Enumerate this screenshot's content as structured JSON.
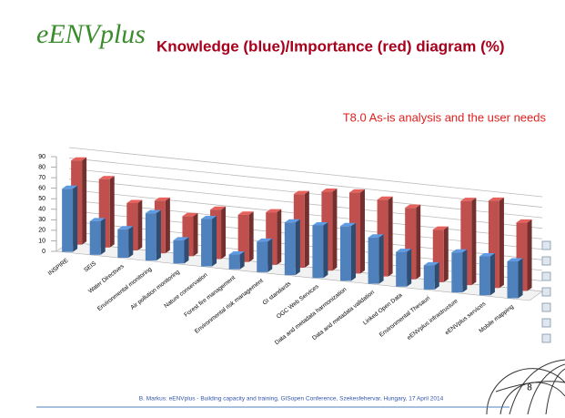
{
  "logo": "eENVplus",
  "chart_data": {
    "type": "bar",
    "title": "Knowledge (blue)/Importance (red) diagram (%)",
    "subtitle": "T8.0 As-is analysis and the user needs",
    "categories": [
      "INSPIRE",
      "SEIS",
      "Water Directives",
      "Environmental monitoring",
      "Air pollution monitoring",
      "Nature conservation",
      "Forest fire management",
      "Environmental risk management",
      "GI standards",
      "OGC Web Services",
      "Data and metadata harmonization",
      "Data and metadata validation",
      "Linked Open Data",
      "Environmental Thesauri",
      "eENVplus infrastructure",
      "eENVplus services",
      "Mobile mapping"
    ],
    "series": [
      {
        "color": "#4f81bd",
        "values": [
          60,
          32,
          27,
          45,
          22,
          45,
          14,
          29,
          50,
          50,
          52,
          44,
          33,
          23,
          38,
          37,
          35
        ]
      },
      {
        "color": "#c0504d",
        "values": [
          80,
          65,
          45,
          50,
          38,
          47,
          45,
          50,
          70,
          75,
          77,
          73,
          68,
          50,
          80,
          83,
          65
        ]
      }
    ],
    "ylim": [
      0,
      90
    ],
    "yticks": [
      0,
      10,
      20,
      30,
      40,
      50,
      60,
      70,
      80,
      90
    ],
    "grid": true
  },
  "footer": {
    "text": "B. Markus: eENVplus - Building capacity and training, GISopen Conference, Szekesfehervar, Hungary, 17 April 2014",
    "page": "8"
  }
}
